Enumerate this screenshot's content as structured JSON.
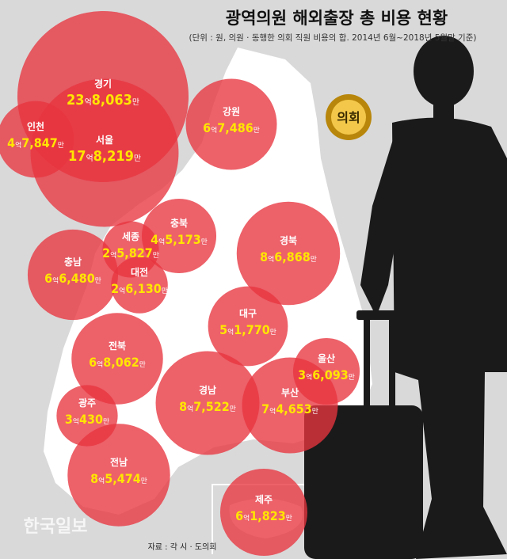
{
  "title": "광역의원 해외출장 총 비용 현황",
  "subtitle": "(단위 : 원, 의원 · 동행한 의회 직원 비용의 합. 2014년 6월~2018년 5월말 기준)",
  "source": "자료 : 각 시 · 도의회",
  "watermark": "한국일보",
  "badge": "의회",
  "units": {
    "eok": "억",
    "man": "만"
  },
  "colors": {
    "bubble": "#e8353f",
    "amount": "#ffe600",
    "label": "#ffffff",
    "background": "#d9d9d9",
    "map": "#ffffff",
    "silhouette": "#1a1a1a"
  },
  "chart_data": {
    "type": "bubble",
    "title": "광역의원 해외출장 총 비용 현황",
    "subtitle": "(단위 : 원, 의원 · 동행한 의회 직원 비용의 합. 2014년 6월~2018년 5월말 기준)",
    "series": [
      {
        "region": "경기",
        "eok": "23",
        "man": "8,063",
        "value": 2380630000
      },
      {
        "region": "인천",
        "eok": "4",
        "man": "7,847",
        "value": 478470000
      },
      {
        "region": "서울",
        "eok": "17",
        "man": "8,219",
        "value": 1782190000
      },
      {
        "region": "강원",
        "eok": "6",
        "man": "7,486",
        "value": 674860000
      },
      {
        "region": "충북",
        "eok": "4",
        "man": "5,173",
        "value": 451730000
      },
      {
        "region": "세종",
        "eok": "2",
        "man": "5,827",
        "value": 258270000
      },
      {
        "region": "충남",
        "eok": "6",
        "man": "6,480",
        "value": 664800000
      },
      {
        "region": "대전",
        "eok": "2",
        "man": "6,130",
        "value": 261300000
      },
      {
        "region": "경북",
        "eok": "8",
        "man": "6,868",
        "value": 868680000
      },
      {
        "region": "대구",
        "eok": "5",
        "man": "1,770",
        "value": 517700000
      },
      {
        "region": "전북",
        "eok": "6",
        "man": "8,062",
        "value": 680620000
      },
      {
        "region": "울산",
        "eok": "3",
        "man": "6,093",
        "value": 360930000
      },
      {
        "region": "광주",
        "eok": "3",
        "man": "430",
        "value": 304300000
      },
      {
        "region": "경남",
        "eok": "8",
        "man": "7,522",
        "value": 875220000
      },
      {
        "region": "부산",
        "eok": "7",
        "man": "4,653",
        "value": 746530000
      },
      {
        "region": "전남",
        "eok": "8",
        "man": "5,474",
        "value": 854740000
      },
      {
        "region": "제주",
        "eok": "6",
        "man": "1,823",
        "value": 618230000
      }
    ]
  }
}
